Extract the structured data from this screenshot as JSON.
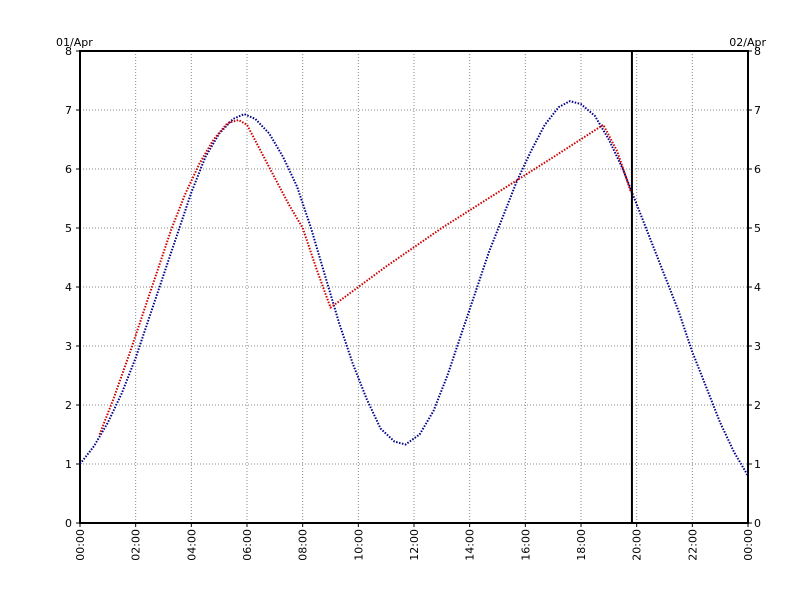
{
  "chart_data": {
    "type": "line",
    "date_start": "01/Apr",
    "date_end": "02/Apr",
    "x_ticks": [
      "00:00",
      "02:00",
      "04:00",
      "06:00",
      "08:00",
      "10:00",
      "12:00",
      "14:00",
      "16:00",
      "18:00",
      "20:00",
      "22:00",
      "00:00"
    ],
    "y_ticks": [
      "0",
      "1",
      "2",
      "3",
      "4",
      "5",
      "6",
      "7",
      "8"
    ],
    "xlim_hours": [
      0,
      24
    ],
    "ylim": [
      0,
      8
    ],
    "grid": true,
    "marker_line_hour": 19.83,
    "series": [
      {
        "color": "#00008b",
        "style": "dotted",
        "points": [
          [
            0.0,
            1.0
          ],
          [
            0.5,
            1.3
          ],
          [
            1.0,
            1.7
          ],
          [
            1.5,
            2.2
          ],
          [
            2.0,
            2.8
          ],
          [
            2.5,
            3.5
          ],
          [
            3.0,
            4.2
          ],
          [
            3.5,
            4.9
          ],
          [
            4.0,
            5.6
          ],
          [
            4.5,
            6.2
          ],
          [
            5.0,
            6.6
          ],
          [
            5.5,
            6.85
          ],
          [
            5.9,
            6.93
          ],
          [
            6.3,
            6.85
          ],
          [
            6.8,
            6.6
          ],
          [
            7.3,
            6.2
          ],
          [
            7.8,
            5.7
          ],
          [
            8.3,
            5.0
          ],
          [
            8.8,
            4.2
          ],
          [
            9.3,
            3.4
          ],
          [
            9.8,
            2.7
          ],
          [
            10.3,
            2.1
          ],
          [
            10.8,
            1.6
          ],
          [
            11.3,
            1.38
          ],
          [
            11.7,
            1.33
          ],
          [
            12.2,
            1.5
          ],
          [
            12.7,
            1.9
          ],
          [
            13.2,
            2.5
          ],
          [
            13.7,
            3.2
          ],
          [
            14.2,
            3.9
          ],
          [
            14.7,
            4.6
          ],
          [
            15.2,
            5.2
          ],
          [
            15.7,
            5.8
          ],
          [
            16.2,
            6.3
          ],
          [
            16.7,
            6.75
          ],
          [
            17.2,
            7.05
          ],
          [
            17.6,
            7.15
          ],
          [
            18.0,
            7.1
          ],
          [
            18.5,
            6.9
          ],
          [
            19.0,
            6.5
          ],
          [
            19.5,
            6.0
          ],
          [
            20.0,
            5.4
          ],
          [
            20.5,
            4.8
          ],
          [
            21.0,
            4.2
          ],
          [
            21.5,
            3.6
          ],
          [
            22.0,
            2.9
          ],
          [
            22.5,
            2.3
          ],
          [
            23.0,
            1.7
          ],
          [
            23.5,
            1.2
          ],
          [
            24.0,
            0.8
          ]
        ]
      },
      {
        "color": "#cc0000",
        "style": "dotted",
        "points": [
          [
            0.7,
            1.5
          ],
          [
            1.2,
            2.1
          ],
          [
            1.8,
            2.9
          ],
          [
            2.3,
            3.6
          ],
          [
            2.8,
            4.3
          ],
          [
            3.3,
            5.0
          ],
          [
            3.8,
            5.6
          ],
          [
            4.3,
            6.1
          ],
          [
            4.8,
            6.5
          ],
          [
            5.3,
            6.78
          ],
          [
            5.7,
            6.83
          ],
          [
            6.0,
            6.75
          ],
          [
            6.5,
            6.3
          ],
          [
            7.0,
            5.85
          ],
          [
            7.5,
            5.4
          ],
          [
            8.0,
            5.0
          ],
          [
            8.5,
            4.3
          ],
          [
            9.0,
            3.65
          ],
          [
            11.0,
            4.35
          ],
          [
            13.0,
            5.0
          ],
          [
            15.0,
            5.6
          ],
          [
            17.0,
            6.2
          ],
          [
            18.8,
            6.75
          ],
          [
            19.3,
            6.3
          ],
          [
            19.8,
            5.6
          ]
        ]
      }
    ]
  }
}
